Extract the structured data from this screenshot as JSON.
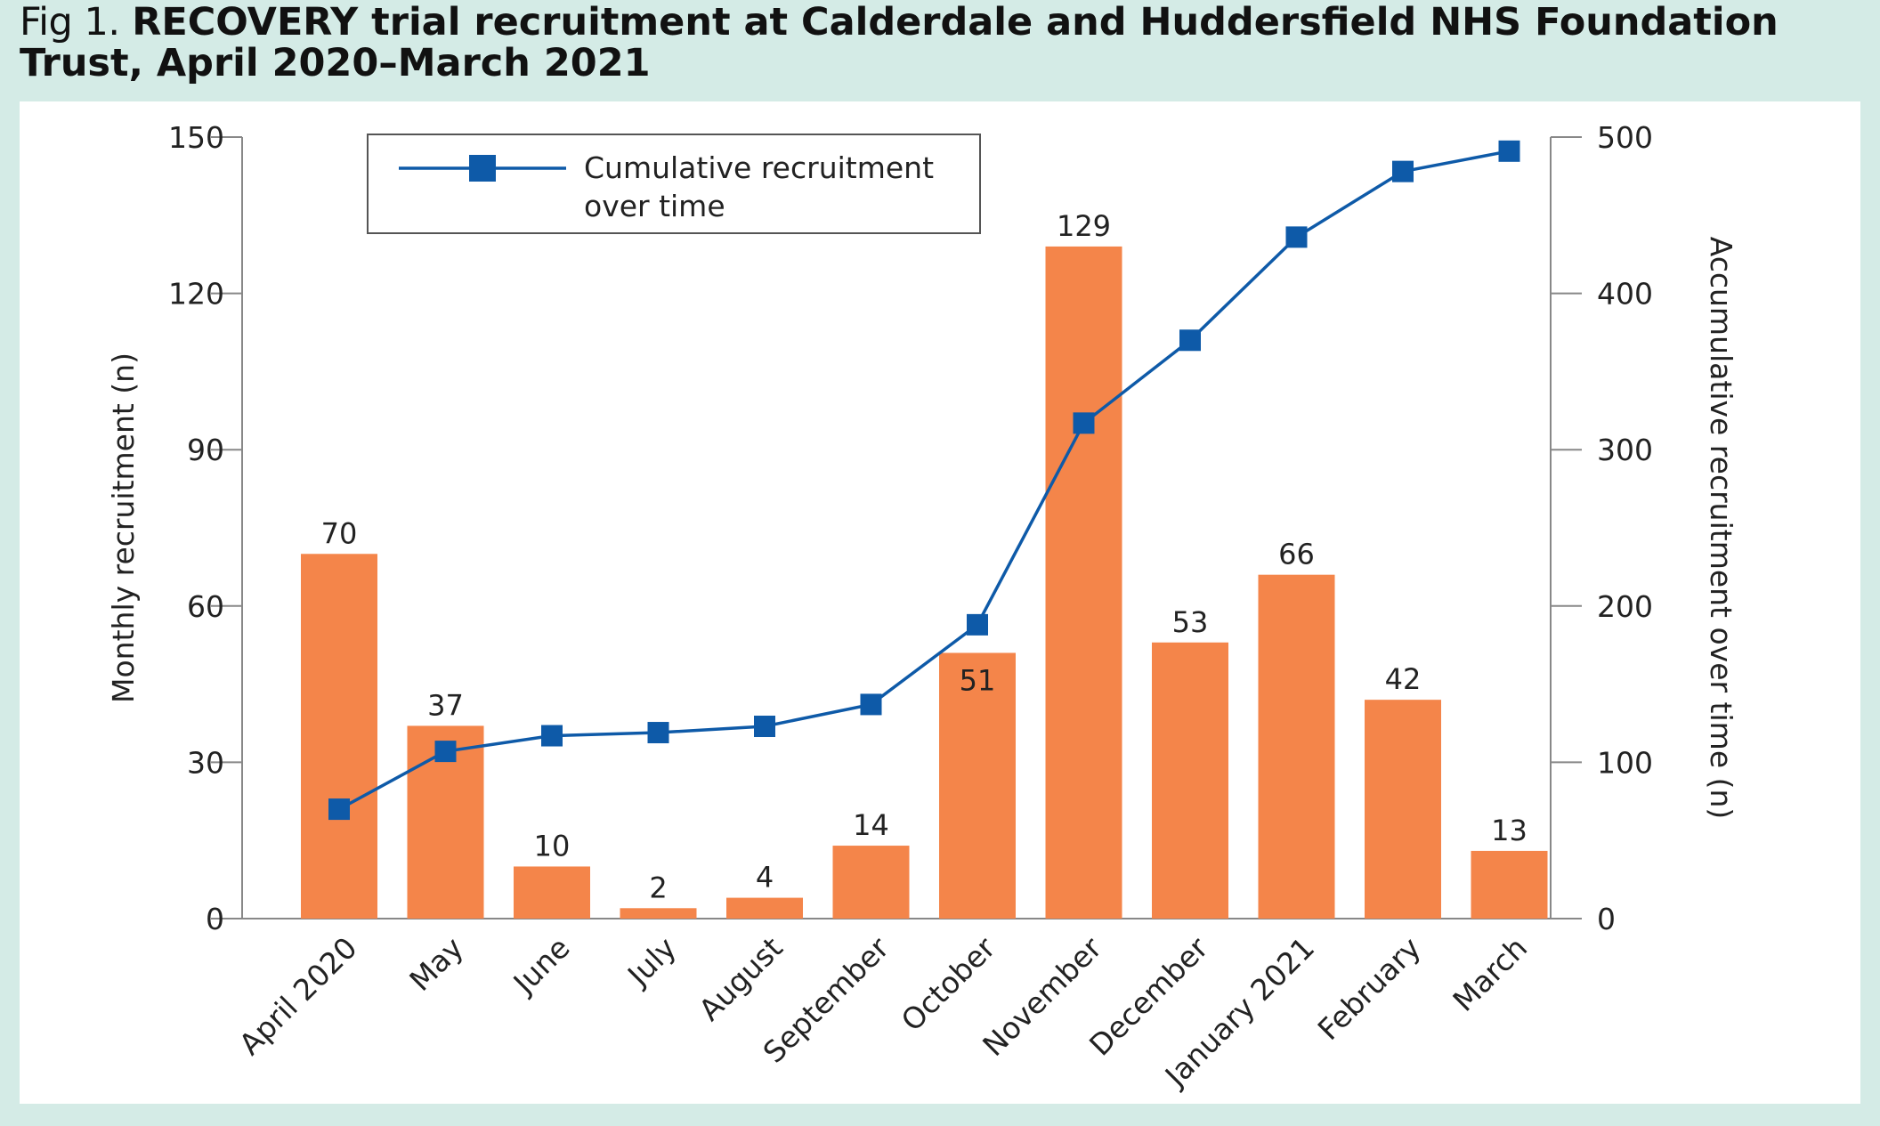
{
  "figure": {
    "label": "Fig 1.",
    "title": "RECOVERY trial recruitment at Calderdale and Huddersfield NHS Foundation Trust, April 2020–March 2021"
  },
  "colors": {
    "bar": "#f4854a",
    "line": "#0e5aa8",
    "axis": "#888888",
    "text": "#222222"
  },
  "chart_data": {
    "type": "bar",
    "title": "RECOVERY trial recruitment at Calderdale and Huddersfield NHS Foundation Trust, April 2020–March 2021",
    "categories": [
      "April 2020",
      "May",
      "June",
      "July",
      "August",
      "September",
      "October",
      "November",
      "December",
      "January 2021",
      "February",
      "March"
    ],
    "series": [
      {
        "name": "Monthly recruitment (n)",
        "type": "bar",
        "axis": "left",
        "values": [
          70,
          37,
          10,
          2,
          4,
          14,
          51,
          129,
          53,
          66,
          42,
          13
        ],
        "labels": [
          "70",
          "37",
          "10",
          "2",
          "4",
          "14",
          "51",
          "129",
          "53",
          "66",
          "42",
          "13"
        ]
      },
      {
        "name": "Cumulative recruitment over time",
        "type": "line",
        "axis": "right",
        "marker": "square",
        "values": [
          70,
          107,
          117,
          119,
          123,
          137,
          188,
          317,
          370,
          436,
          478,
          491
        ]
      }
    ],
    "ylabel_left": "Monthly recruitment (n)",
    "ylabel_right": "Accumulative recruitment over time (n)",
    "ylim_left": [
      0,
      150
    ],
    "yticks_left": [
      "0",
      "30",
      "60",
      "90",
      "120",
      "150"
    ],
    "ylim_right": [
      0,
      500
    ],
    "yticks_right": [
      "0",
      "100",
      "200",
      "300",
      "400",
      "500"
    ],
    "legend": {
      "placement": "top-left",
      "lines": [
        "Cumulative recruitment",
        "over time"
      ]
    },
    "grid": false
  }
}
